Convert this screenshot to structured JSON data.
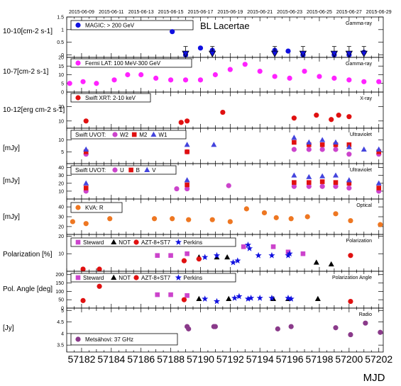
{
  "chart_data": {
    "type": "scatter",
    "title": "BL Lacertae",
    "xlabel": "MJD",
    "x_axis": {
      "range": [
        57181,
        57202.3
      ],
      "ticks": [
        57182,
        57184,
        57186,
        57188,
        57190,
        57192,
        57194,
        57196,
        57198,
        57200,
        57202
      ],
      "date_labels": [
        "2015-06-09",
        "2015-06-11",
        "2015-06-13",
        "2015-06-15",
        "2015-06-17",
        "2015-06-19",
        "2015-06-21",
        "2015-06-23",
        "2015-06-25",
        "2015-06-27",
        "2015-06-29"
      ],
      "date_ticks": [
        57182,
        57184,
        57186,
        57188,
        57190,
        57192,
        57194,
        57196,
        57198,
        57200,
        57202
      ]
    },
    "panels": [
      {
        "id": "gamma-vhe",
        "ylabel": "10-10[cm-2 s-1]",
        "band": "Gamma-ray",
        "ylim": [
          -0.1,
          1.5
        ],
        "yticks": [
          0,
          0.5,
          1,
          1.5
        ],
        "series": [
          {
            "name": "MAGIC: > 200 GeV",
            "marker": "circle",
            "color": "#1010e0",
            "points": [
              [
                57188.1,
                0.92
              ],
              [
                57189.0,
                0.0
              ],
              [
                57190.0,
                0.27
              ],
              [
                57190.8,
                0.18
              ],
              [
                57195.0,
                0.18
              ],
              [
                57195.9,
                0.15
              ],
              [
                57196.9,
                0.0
              ],
              [
                57199.0,
                0.0
              ],
              [
                57200.0,
                0.0
              ],
              [
                57201.0,
                0.1
              ]
            ]
          },
          {
            "name": "upper limits",
            "marker": "triangle-down",
            "color": "#1010e0",
            "points": [
              [
                57189.0,
                0.05
              ],
              [
                57190.8,
                0.05
              ],
              [
                57195.0,
                0.05
              ],
              [
                57196.9,
                0.05
              ],
              [
                57199.0,
                0.05
              ],
              [
                57200.0,
                0.05
              ],
              [
                57201.0,
                0.05
              ]
            ]
          }
        ]
      },
      {
        "id": "gamma-he",
        "ylabel": "10-7[cm-2 s-1]",
        "band": "Gamma-ray",
        "ylim": [
          0,
          20
        ],
        "yticks": [
          0,
          5,
          10,
          15,
          20
        ],
        "series": [
          {
            "name": "Fermi LAT: 100 MeV-300 GeV",
            "marker": "circle",
            "color": "#ff22ff",
            "points": [
              [
                57181.2,
                5
              ],
              [
                57182.1,
                6
              ],
              [
                57183.0,
                5
              ],
              [
                57184.2,
                7
              ],
              [
                57185.1,
                10
              ],
              [
                57186.0,
                10
              ],
              [
                57187.0,
                8
              ],
              [
                57188.0,
                7
              ],
              [
                57189.0,
                7
              ],
              [
                57190.0,
                7
              ],
              [
                57191.0,
                10
              ],
              [
                57192.0,
                13
              ],
              [
                57193.0,
                16
              ],
              [
                57194.0,
                12
              ],
              [
                57195.0,
                9
              ],
              [
                57196.0,
                8
              ],
              [
                57197.0,
                12
              ],
              [
                57198.0,
                9
              ],
              [
                57199.0,
                8
              ],
              [
                57200.0,
                7
              ],
              [
                57201.0,
                6
              ],
              [
                57202.0,
                6
              ]
            ]
          }
        ]
      },
      {
        "id": "xray",
        "ylabel": "10-12[erg cm-2 s-1]",
        "band": "X-ray",
        "ylim": [
          5,
          30
        ],
        "yticks": [
          10,
          20
        ],
        "series": [
          {
            "name": "Swift XRT: 2-10 keV",
            "marker": "circle",
            "color": "#e01010",
            "points": [
              [
                57182.3,
                10
              ],
              [
                57188.7,
                9
              ],
              [
                57189.1,
                10
              ],
              [
                57191.5,
                16
              ],
              [
                57196.3,
                12
              ],
              [
                57197.8,
                14
              ],
              [
                57198.8,
                11
              ],
              [
                57199.3,
                14
              ],
              [
                57200.0,
                13
              ]
            ]
          }
        ]
      },
      {
        "id": "uvot1",
        "ylabel": "[mJy]",
        "band": "Ultraviolet",
        "ylim": [
          0,
          15
        ],
        "yticks": [
          5,
          10
        ],
        "series": [
          {
            "name": "W2",
            "marker": "circle",
            "color": "#cc44cc",
            "points": [
              [
                57182.3,
                4
              ],
              [
                57189.1,
                5
              ],
              [
                57196.3,
                6
              ],
              [
                57197.3,
                6
              ],
              [
                57198.2,
                6
              ],
              [
                57199.1,
                6
              ],
              [
                57200.0,
                4
              ],
              [
                57202.0,
                4
              ]
            ]
          },
          {
            "name": "M2",
            "marker": "square",
            "color": "#e01010",
            "points": [
              [
                57182.3,
                5
              ],
              [
                57189.1,
                5
              ],
              [
                57196.3,
                9
              ],
              [
                57197.3,
                8
              ],
              [
                57198.2,
                8
              ],
              [
                57199.1,
                8
              ],
              [
                57200.0,
                8
              ],
              [
                57202.0,
                5
              ]
            ]
          },
          {
            "name": "W1",
            "marker": "triangle",
            "color": "#4444dd",
            "points": [
              [
                57182.3,
                6
              ],
              [
                57189.1,
                8
              ],
              [
                57190.9,
                8
              ],
              [
                57196.3,
                11
              ],
              [
                57197.3,
                9
              ],
              [
                57198.2,
                10
              ],
              [
                57199.1,
                9
              ],
              [
                57200.0,
                7
              ],
              [
                57201.0,
                6
              ],
              [
                57202.0,
                6
              ]
            ]
          }
        ]
      },
      {
        "id": "uvot2",
        "ylabel": "[mJy]",
        "band": "Ultraviolet",
        "ylim": [
          0,
          45
        ],
        "yticks": [
          10,
          20,
          30,
          40
        ],
        "series": [
          {
            "name": "U",
            "marker": "circle",
            "color": "#cc44cc",
            "points": [
              [
                57182.3,
                10
              ],
              [
                57188.4,
                13
              ],
              [
                57189.1,
                13
              ],
              [
                57191.9,
                17
              ],
              [
                57196.3,
                16
              ],
              [
                57197.3,
                16
              ],
              [
                57198.2,
                16
              ],
              [
                57199.1,
                16
              ],
              [
                57200.0,
                14
              ],
              [
                57202.0,
                10
              ]
            ]
          },
          {
            "name": "B",
            "marker": "square",
            "color": "#e01010",
            "points": [
              [
                57182.3,
                14
              ],
              [
                57189.1,
                18
              ],
              [
                57196.3,
                21
              ],
              [
                57197.3,
                21
              ],
              [
                57198.2,
                22
              ],
              [
                57199.1,
                21
              ],
              [
                57200.0,
                20
              ],
              [
                57202.0,
                14
              ]
            ]
          },
          {
            "name": "V",
            "marker": "triangle",
            "color": "#4444dd",
            "points": [
              [
                57182.3,
                20
              ],
              [
                57189.1,
                24
              ],
              [
                57196.3,
                30
              ],
              [
                57197.3,
                28
              ],
              [
                57198.2,
                29
              ],
              [
                57199.1,
                30
              ],
              [
                57200.0,
                24
              ],
              [
                57202.0,
                20
              ]
            ]
          }
        ]
      },
      {
        "id": "optical",
        "ylabel": "[mJy]",
        "band": "Optical",
        "ylim": [
          12,
          48
        ],
        "yticks": [
          20,
          30,
          40
        ],
        "series": [
          {
            "name": "KVA: R",
            "marker": "circle",
            "color": "#ee7722",
            "points": [
              [
                57181.4,
                25
              ],
              [
                57182.3,
                23
              ],
              [
                57183.9,
                28
              ],
              [
                57186.9,
                28
              ],
              [
                57188.1,
                28
              ],
              [
                57189.2,
                27
              ],
              [
                57190.8,
                27
              ],
              [
                57192.0,
                25
              ],
              [
                57193.1,
                38
              ],
              [
                57194.3,
                34
              ],
              [
                57195.1,
                29
              ],
              [
                57196.1,
                28
              ],
              [
                57197.2,
                30
              ],
              [
                57199.1,
                33
              ],
              [
                57200.1,
                26
              ],
              [
                57202.1,
                22
              ]
            ]
          }
        ]
      },
      {
        "id": "polarization",
        "ylabel": "Polarization [%]",
        "band": "Polarization",
        "ylim": [
          0,
          21
        ],
        "yticks": [
          10,
          20
        ],
        "series": [
          {
            "name": "Steward",
            "marker": "square",
            "color": "#cc44cc",
            "points": [
              [
                57187.1,
                9
              ],
              [
                57188.0,
                9
              ],
              [
                57189.1,
                10
              ],
              [
                57192.9,
                14
              ],
              [
                57194.9,
                14
              ],
              [
                57195.9,
                11
              ],
              [
                57196.9,
                10
              ]
            ]
          },
          {
            "name": "NOT",
            "marker": "triangle",
            "color": "#000000",
            "points": [
              [
                57189.9,
                8
              ],
              [
                57191.1,
                8
              ],
              [
                57191.8,
                8
              ],
              [
                57197.8,
                5
              ],
              [
                57198.8,
                4
              ]
            ]
          },
          {
            "name": "AZT-8+ST7",
            "marker": "circle",
            "color": "#e01010",
            "points": [
              [
                57182.1,
                1
              ],
              [
                57183.2,
                1
              ],
              [
                57188.9,
                6
              ],
              [
                57189.9,
                7
              ],
              [
                57200.1,
                9
              ]
            ]
          },
          {
            "name": "Perkins",
            "marker": "star",
            "color": "#1010e0",
            "points": [
              [
                57190.3,
                8
              ],
              [
                57191.1,
                9
              ],
              [
                57192.2,
                5
              ],
              [
                57192.5,
                6
              ],
              [
                57193.2,
                15
              ],
              [
                57193.3,
                13
              ],
              [
                57193.9,
                9
              ],
              [
                57194.8,
                9
              ],
              [
                57195.9,
                9
              ],
              [
                57196.0,
                10
              ]
            ]
          }
        ]
      },
      {
        "id": "angle",
        "ylabel": "Pol. Angle [deg]",
        "band": "Polarization Angle",
        "ylim": [
          0,
          220
        ],
        "yticks": [
          0,
          50,
          100,
          150,
          200
        ],
        "series": [
          {
            "name": "Steward",
            "marker": "square",
            "color": "#cc44cc",
            "points": [
              [
                57187.1,
                80
              ],
              [
                57188.0,
                80
              ],
              [
                57189.1,
                75
              ]
            ]
          },
          {
            "name": "NOT",
            "marker": "triangle",
            "color": "#000000",
            "points": [
              [
                57189.9,
                55
              ],
              [
                57191.9,
                55
              ],
              [
                57194.9,
                55
              ],
              [
                57195.9,
                55
              ],
              [
                57197.9,
                55
              ]
            ]
          },
          {
            "name": "AZT-8+ST7",
            "marker": "circle",
            "color": "#e01010",
            "points": [
              [
                57182.1,
                45
              ],
              [
                57183.2,
                130
              ],
              [
                57188.9,
                50
              ],
              [
                57200.1,
                40
              ]
            ]
          },
          {
            "name": "Perkins",
            "marker": "star",
            "color": "#1010e0",
            "points": [
              [
                57190.3,
                55
              ],
              [
                57191.1,
                40
              ],
              [
                57192.3,
                60
              ],
              [
                57192.6,
                70
              ],
              [
                57193.2,
                55
              ],
              [
                57193.4,
                60
              ],
              [
                57194.0,
                60
              ],
              [
                57194.8,
                60
              ],
              [
                57195.9,
                60
              ],
              [
                57196.1,
                55
              ]
            ]
          }
        ]
      },
      {
        "id": "radio",
        "ylabel": "[Jy]",
        "band": "Radio",
        "ylim": [
          3.2,
          5.1
        ],
        "yticks": [
          3.5,
          4,
          4.5,
          5
        ],
        "series": [
          {
            "name": "Metsähovi: 37 GHz",
            "marker": "circle",
            "color": "#8a3a8a",
            "points": [
              [
                57189.1,
                4.3
              ],
              [
                57189.2,
                4.2
              ],
              [
                57190.9,
                4.3
              ],
              [
                57191.0,
                4.3
              ],
              [
                57195.2,
                4.2
              ],
              [
                57196.1,
                4.3
              ],
              [
                57199.1,
                4.25
              ],
              [
                57200.1,
                3.95
              ],
              [
                57201.1,
                4.45
              ],
              [
                57202.1,
                4.05
              ]
            ]
          }
        ]
      }
    ]
  }
}
